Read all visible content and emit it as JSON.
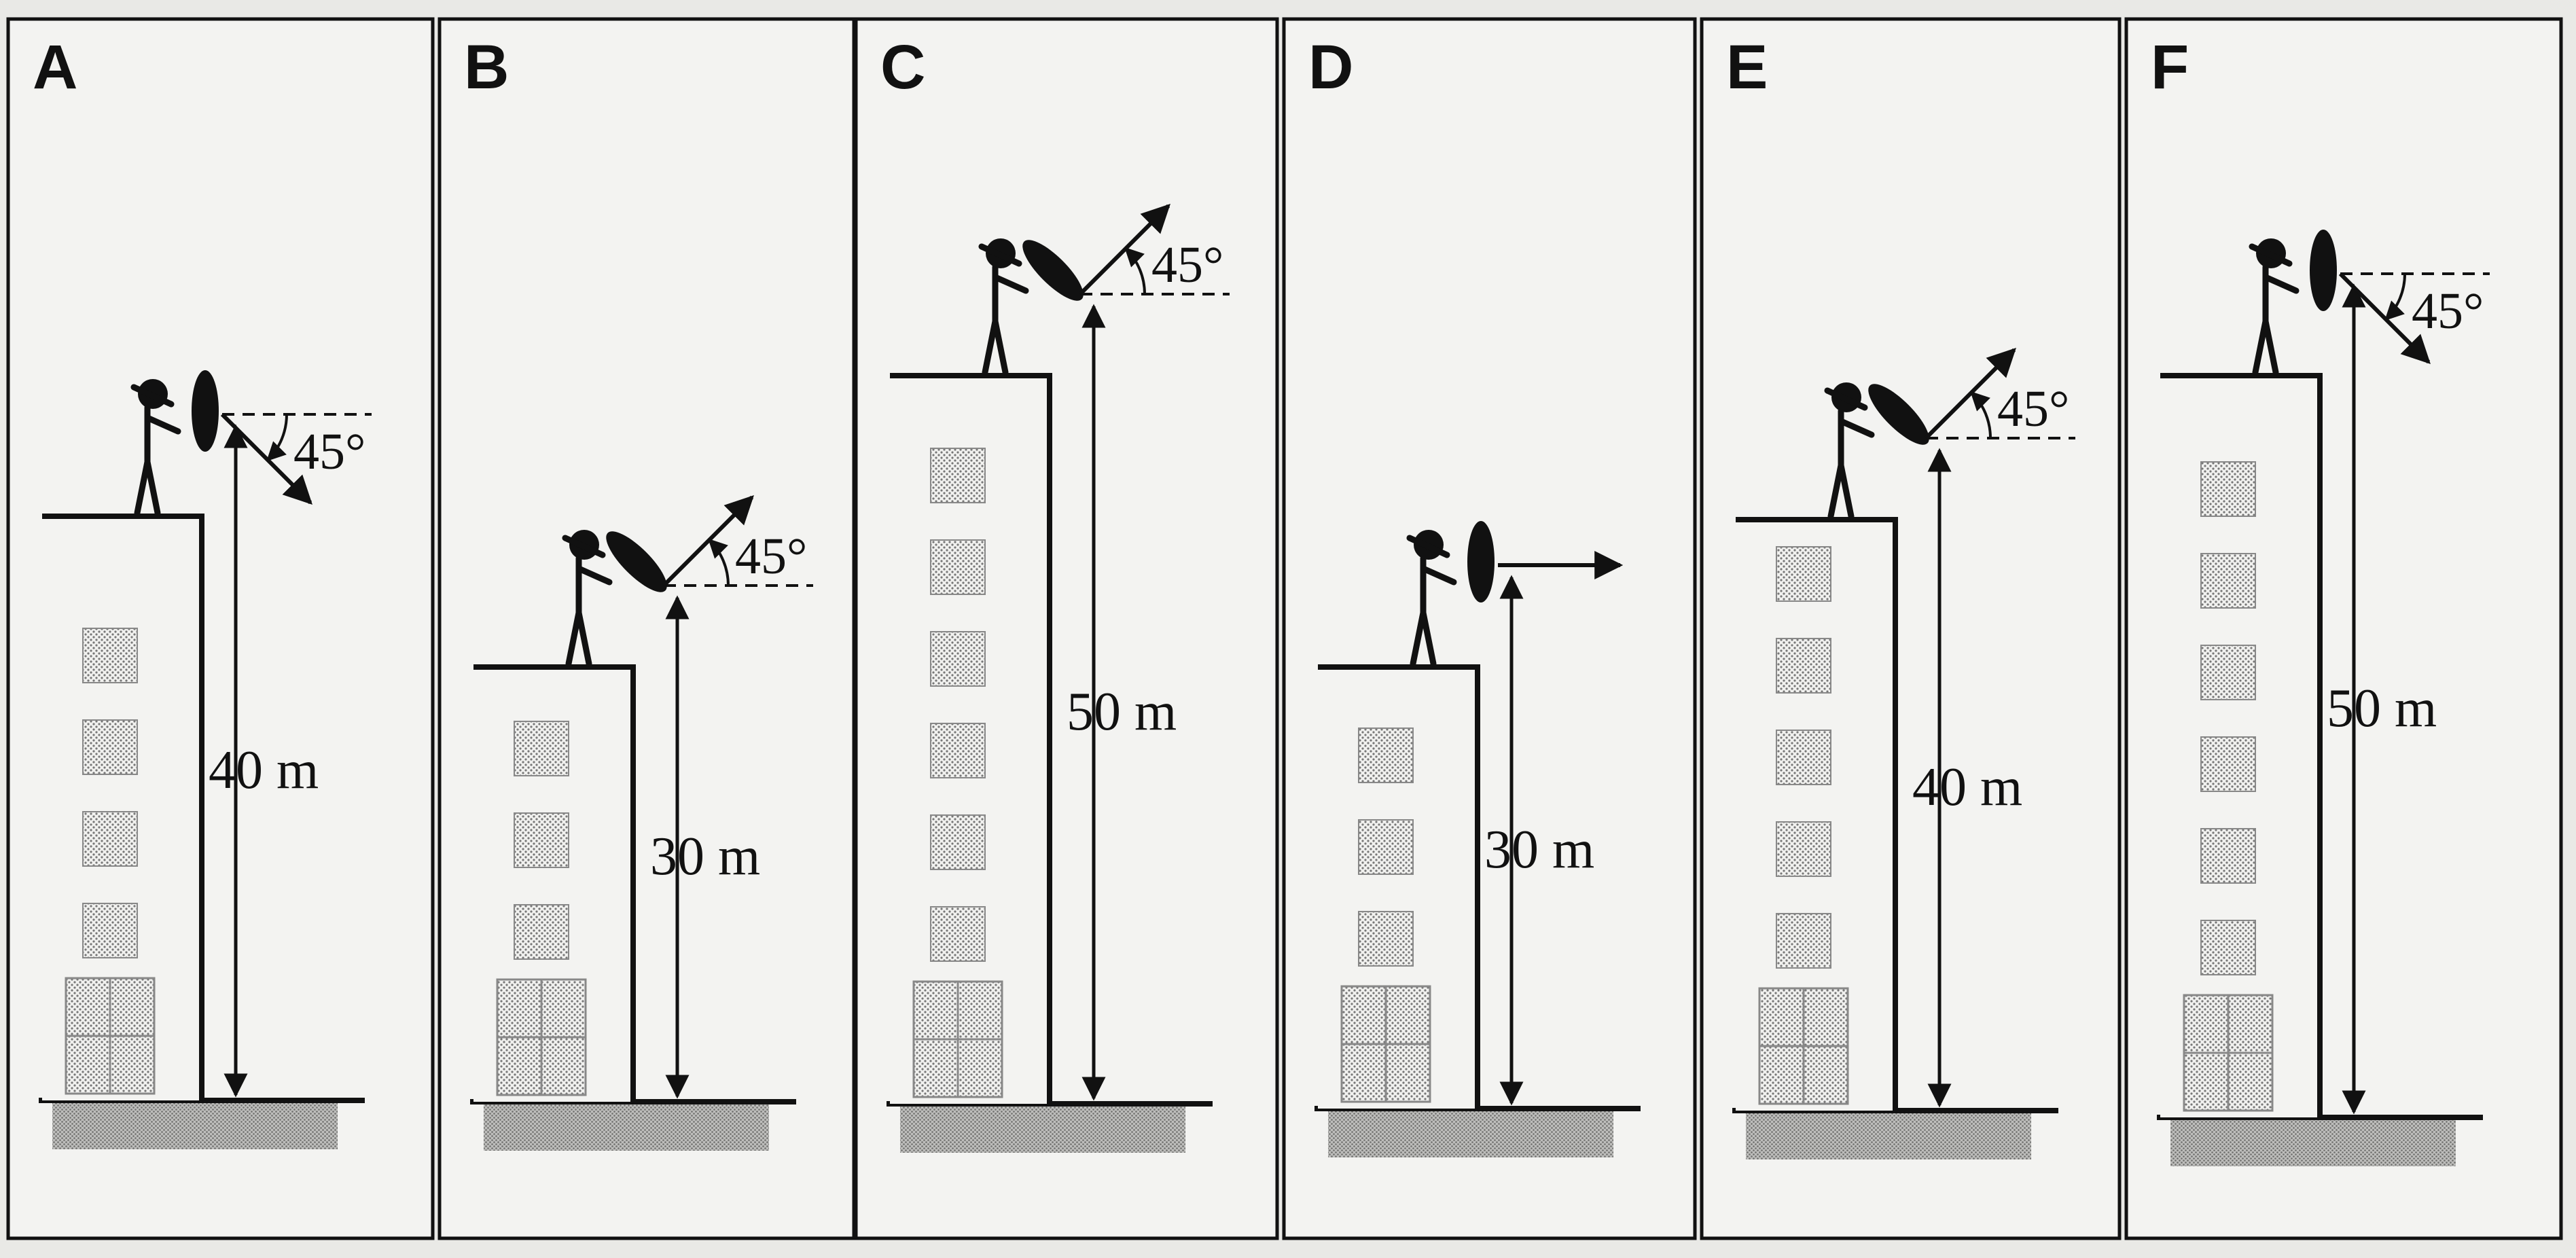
{
  "panels": [
    {
      "letter": "A",
      "height_label": "40 m",
      "height_m": 40,
      "launch": "down-45",
      "angle_label": "45°"
    },
    {
      "letter": "B",
      "height_label": "30 m",
      "height_m": 30,
      "launch": "up-45",
      "angle_label": "45°"
    },
    {
      "letter": "C",
      "height_label": "50 m",
      "height_m": 50,
      "launch": "up-45",
      "angle_label": "45°"
    },
    {
      "letter": "D",
      "height_label": "30 m",
      "height_m": 30,
      "launch": "horizontal",
      "angle_label": ""
    },
    {
      "letter": "E",
      "height_label": "40 m",
      "height_m": 40,
      "launch": "up-45",
      "angle_label": "45°"
    },
    {
      "letter": "F",
      "height_label": "50 m",
      "height_m": 50,
      "launch": "down-45",
      "angle_label": "45°"
    }
  ]
}
